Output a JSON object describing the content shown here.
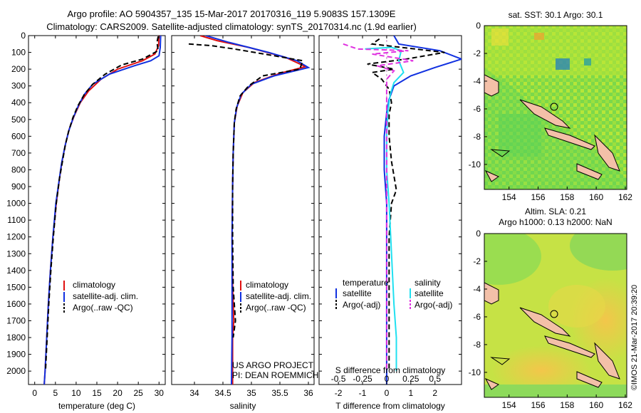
{
  "header": {
    "line1": "Argo profile: AO 5904357_135 15-Mar-2017 20170316_119 5.9083S 157.1309E",
    "line2": "Climatology: CARS2009. Satellite-adjusted climatology: synTS_20170314.nc (1.9d earlier)"
  },
  "depth_axis": {
    "ticks": [
      0,
      100,
      200,
      300,
      400,
      500,
      600,
      700,
      800,
      900,
      1000,
      1100,
      1200,
      1300,
      1400,
      1500,
      1600,
      1700,
      1800,
      1900,
      2000
    ],
    "range": [
      0,
      2080
    ]
  },
  "chart_data": [
    {
      "type": "line",
      "id": "temperature",
      "xlabel": "temperature (deg C)",
      "xlim": [
        -1.5,
        31.5
      ],
      "xticks": [
        0,
        5,
        10,
        15,
        20,
        25,
        30
      ],
      "legend": [
        "climatology",
        "satellite-adj. clim.",
        "Argo(..raw -QC)"
      ],
      "series": [
        {
          "name": "climatology",
          "color": "#e01010",
          "dash": "",
          "points": [
            [
              30,
              0
            ],
            [
              29.9,
              60
            ],
            [
              29,
              110
            ],
            [
              26,
              150
            ],
            [
              20,
              200
            ],
            [
              16,
              260
            ],
            [
              13,
              330
            ],
            [
              11,
              400
            ],
            [
              9.5,
              480
            ],
            [
              8.3,
              560
            ],
            [
              7.4,
              650
            ],
            [
              6.6,
              750
            ],
            [
              6,
              850
            ],
            [
              5.2,
              1000
            ],
            [
              4.4,
              1200
            ],
            [
              3.8,
              1400
            ],
            [
              3.3,
              1600
            ],
            [
              2.9,
              1800
            ],
            [
              2.5,
              2000
            ],
            [
              2.3,
              2080
            ]
          ]
        },
        {
          "name": "satellite-adj. clim.",
          "color": "#1030e0",
          "dash": "",
          "points": [
            [
              30.4,
              0
            ],
            [
              30.3,
              70
            ],
            [
              30,
              120
            ],
            [
              28,
              150
            ],
            [
              24,
              180
            ],
            [
              18,
              230
            ],
            [
              14,
              290
            ],
            [
              12,
              350
            ],
            [
              10.5,
              420
            ],
            [
              9.3,
              490
            ],
            [
              8.2,
              570
            ],
            [
              7.3,
              660
            ],
            [
              6.5,
              760
            ],
            [
              5.9,
              860
            ],
            [
              5.1,
              1000
            ],
            [
              4.4,
              1200
            ],
            [
              3.8,
              1400
            ],
            [
              3.3,
              1600
            ],
            [
              2.9,
              1800
            ],
            [
              2.5,
              2000
            ],
            [
              2.3,
              2080
            ]
          ]
        },
        {
          "name": "Argo(..raw -QC)",
          "color": "#000000",
          "dash": "7,4",
          "points": [
            [
              29.8,
              5
            ],
            [
              29.5,
              40
            ],
            [
              29.8,
              90
            ],
            [
              26,
              140
            ],
            [
              21,
              175
            ],
            [
              17,
              230
            ],
            [
              14,
              290
            ],
            [
              12,
              350
            ],
            [
              10.4,
              420
            ],
            [
              9.2,
              490
            ],
            [
              8.2,
              570
            ],
            [
              7.4,
              650
            ],
            [
              6.7,
              750
            ],
            [
              6,
              850
            ],
            [
              5.2,
              1000
            ],
            [
              4.5,
              1200
            ],
            [
              3.9,
              1400
            ],
            [
              3.4,
              1600
            ],
            [
              3,
              1800
            ],
            [
              2.6,
              2000
            ]
          ]
        }
      ]
    },
    {
      "type": "line",
      "id": "salinity",
      "xlabel": "salinity",
      "xlim": [
        33.6,
        36.1
      ],
      "xticks": [
        34,
        34.5,
        35,
        35.5,
        36
      ],
      "legend": [
        "climatology",
        "satellite-adj. clim.",
        "Argo(..raw -QC)"
      ],
      "series": [
        {
          "name": "climatology",
          "color": "#e01010",
          "dash": "",
          "points": [
            [
              34.1,
              0
            ],
            [
              34.4,
              30
            ],
            [
              34.95,
              70
            ],
            [
              35.6,
              130
            ],
            [
              35.95,
              185
            ],
            [
              35.5,
              225
            ],
            [
              35.05,
              280
            ],
            [
              34.85,
              340
            ],
            [
              34.75,
              420
            ],
            [
              34.7,
              520
            ],
            [
              34.68,
              700
            ],
            [
              34.67,
              900
            ],
            [
              34.66,
              1200
            ],
            [
              34.67,
              1500
            ],
            [
              34.69,
              1700
            ],
            [
              34.67,
              1800
            ],
            [
              34.67,
              2080
            ]
          ]
        },
        {
          "name": "satellite-adj. clim.",
          "color": "#1030e0",
          "dash": "",
          "points": [
            [
              34.2,
              0
            ],
            [
              34.6,
              40
            ],
            [
              35.3,
              100
            ],
            [
              35.8,
              150
            ],
            [
              36.0,
              190
            ],
            [
              35.4,
              240
            ],
            [
              35.0,
              290
            ],
            [
              34.82,
              350
            ],
            [
              34.74,
              430
            ],
            [
              34.7,
              520
            ],
            [
              34.68,
              700
            ],
            [
              34.67,
              900
            ],
            [
              34.66,
              1200
            ],
            [
              34.66,
              1500
            ],
            [
              34.66,
              1800
            ],
            [
              34.65,
              2080
            ]
          ]
        },
        {
          "name": "Argo(..raw -QC)",
          "color": "#000000",
          "dash": "7,4",
          "points": [
            [
              33.9,
              50
            ],
            [
              34.3,
              60
            ],
            [
              34.7,
              80
            ],
            [
              35.4,
              120
            ],
            [
              35.9,
              150
            ],
            [
              35.85,
              200
            ],
            [
              35.2,
              240
            ],
            [
              34.95,
              300
            ],
            [
              34.8,
              360
            ],
            [
              34.73,
              440
            ],
            [
              34.7,
              520
            ],
            [
              34.68,
              700
            ],
            [
              34.67,
              900
            ],
            [
              34.67,
              1200
            ],
            [
              34.68,
              1500
            ],
            [
              34.72,
              1700
            ],
            [
              34.68,
              1800
            ]
          ]
        }
      ],
      "annotation": [
        "US ARGO PROJECT",
        "PI: DEAN ROEMMICH"
      ]
    },
    {
      "type": "line",
      "id": "differences",
      "top_label": "S difference from climatology",
      "top_ticks": [
        "-0.5",
        "-0.25",
        "0",
        "0.25",
        "0.5"
      ],
      "top_tick_values": [
        -2,
        -1,
        0,
        1,
        2
      ],
      "xlabel": "T difference from climatology",
      "xlim": [
        -2.8,
        3.1
      ],
      "xticks": [
        -2,
        -1,
        0,
        1,
        2
      ],
      "legend_headers": [
        "temperature",
        "salinity"
      ],
      "legend": [
        "satellite",
        "Argo(-adj)",
        "satellite",
        "Argo(-adj)"
      ],
      "series": [
        {
          "name": "T satellite",
          "color": "#1030e0",
          "dash": "",
          "points": [
            [
              0.3,
              0
            ],
            [
              0.5,
              50
            ],
            [
              2.2,
              90
            ],
            [
              3.1,
              140
            ],
            [
              2,
              190
            ],
            [
              1,
              240
            ],
            [
              0.3,
              300
            ],
            [
              0.1,
              380
            ],
            [
              0,
              460
            ],
            [
              -0.1,
              600
            ],
            [
              -0.1,
              800
            ],
            [
              0,
              1000
            ],
            [
              0,
              1200
            ],
            [
              0,
              1500
            ],
            [
              0,
              1800
            ],
            [
              0,
              2080
            ]
          ]
        },
        {
          "name": "T Argo(-adj)",
          "color": "#000000",
          "dash": "7,4",
          "points": [
            [
              -0.3,
              20
            ],
            [
              -0.6,
              50
            ],
            [
              2.4,
              100
            ],
            [
              0.8,
              140
            ],
            [
              -0.8,
              170
            ],
            [
              0.3,
              200
            ],
            [
              -0.6,
              220
            ],
            [
              -0.2,
              260
            ],
            [
              0.1,
              320
            ],
            [
              0.2,
              400
            ],
            [
              0.1,
              470
            ],
            [
              0.1,
              600
            ],
            [
              0.2,
              750
            ],
            [
              0.4,
              920
            ],
            [
              0.2,
              1000
            ],
            [
              0.1,
              1200
            ],
            [
              0.1,
              1500
            ],
            [
              0.1,
              1800
            ],
            [
              0.1,
              2000
            ]
          ]
        },
        {
          "name": "S satellite",
          "color": "#20e0f0",
          "dash": "",
          "points": [
            [
              -0.9,
              80
            ],
            [
              0.2,
              70
            ],
            [
              0.6,
              90
            ],
            [
              0.5,
              150
            ],
            [
              0.7,
              220
            ],
            [
              0.3,
              280
            ],
            [
              0.15,
              350
            ],
            [
              0.05,
              450
            ],
            [
              0,
              600
            ],
            [
              0,
              800
            ],
            [
              0.1,
              1000
            ],
            [
              0.2,
              1300
            ],
            [
              0.3,
              1600
            ],
            [
              0.4,
              1800
            ],
            [
              0.4,
              2000
            ]
          ]
        },
        {
          "name": "S Argo(-adj)",
          "color": "#e030e0",
          "dash": "7,4",
          "points": [
            [
              -1.8,
              50
            ],
            [
              -1.2,
              80
            ],
            [
              0.9,
              90
            ],
            [
              -0.6,
              110
            ],
            [
              1.1,
              150
            ],
            [
              -0.4,
              180
            ],
            [
              0.3,
              210
            ],
            [
              0,
              260
            ],
            [
              0,
              350
            ],
            [
              0,
              500
            ],
            [
              0,
              800
            ],
            [
              0,
              1200
            ],
            [
              0,
              1600
            ],
            [
              0,
              2000
            ]
          ]
        }
      ]
    }
  ],
  "sst_map": {
    "title": "sat. SST: 30.1  Argo: 30.1",
    "xticks": [
      "154",
      "156",
      "158",
      "160",
      "162"
    ],
    "yticks": [
      "0",
      "-2",
      "-4",
      "-6",
      "-8",
      "-10"
    ]
  },
  "sla_map": {
    "title1": "Altim. SLA: 0.21",
    "title2": "Argo h1000: 0.13 h2000: NaN",
    "xticks": [
      "154",
      "156",
      "158",
      "160",
      "162"
    ],
    "yticks": [
      "0",
      "-2",
      "-4",
      "-6",
      "-8",
      "-10"
    ]
  },
  "credit": "©IMOS 21-Mar-2017 20:39:20",
  "colors": {
    "climatology": "#e01010",
    "satellite": "#1030e0",
    "argo": "#000000",
    "sal_sat": "#20e0f0",
    "sal_argo": "#e030e0"
  }
}
